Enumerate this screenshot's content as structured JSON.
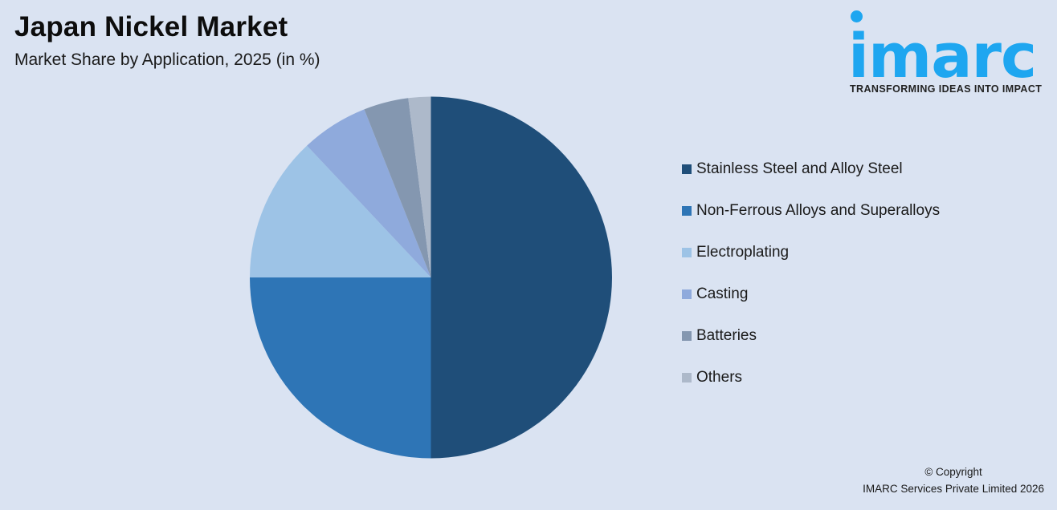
{
  "header": {
    "title": "Japan Nickel Market",
    "subtitle": "Market Share by Application, 2025 (in %)"
  },
  "logo": {
    "wordmark": "imarc",
    "tagline": "TRANSFORMING IDEAS INTO IMPACT",
    "color": "#1ea6f0"
  },
  "chart_data": {
    "type": "pie",
    "title": "Japan Nickel Market",
    "subtitle": "Market Share by Application, 2025 (in %)",
    "categories": [
      "Stainless Steel and Alloy Steel",
      "Non-Ferrous Alloys and Superalloys",
      "Electroplating",
      "Casting",
      "Batteries",
      "Others"
    ],
    "values": [
      50,
      25,
      13,
      6,
      4,
      2
    ],
    "colors": [
      "#1f4e79",
      "#2e75b6",
      "#9dc3e6",
      "#8faadc",
      "#8497b0",
      "#adb9ca"
    ],
    "start_angle_deg": 0,
    "direction": "clockwise",
    "legend_position": "right",
    "data_labels": false
  },
  "legend": {
    "items": [
      {
        "label": "Stainless Steel and Alloy Steel",
        "color": "#1f4e79"
      },
      {
        "label": "Non-Ferrous Alloys and Superalloys",
        "color": "#2e75b6"
      },
      {
        "label": "Electroplating",
        "color": "#9dc3e6"
      },
      {
        "label": "Casting",
        "color": "#8faadc"
      },
      {
        "label": "Batteries",
        "color": "#8497b0"
      },
      {
        "label": "Others",
        "color": "#adb9ca"
      }
    ]
  },
  "footer": {
    "copyright_line1": "© Copyright",
    "copyright_line2": "IMARC Services Private Limited 2026"
  }
}
